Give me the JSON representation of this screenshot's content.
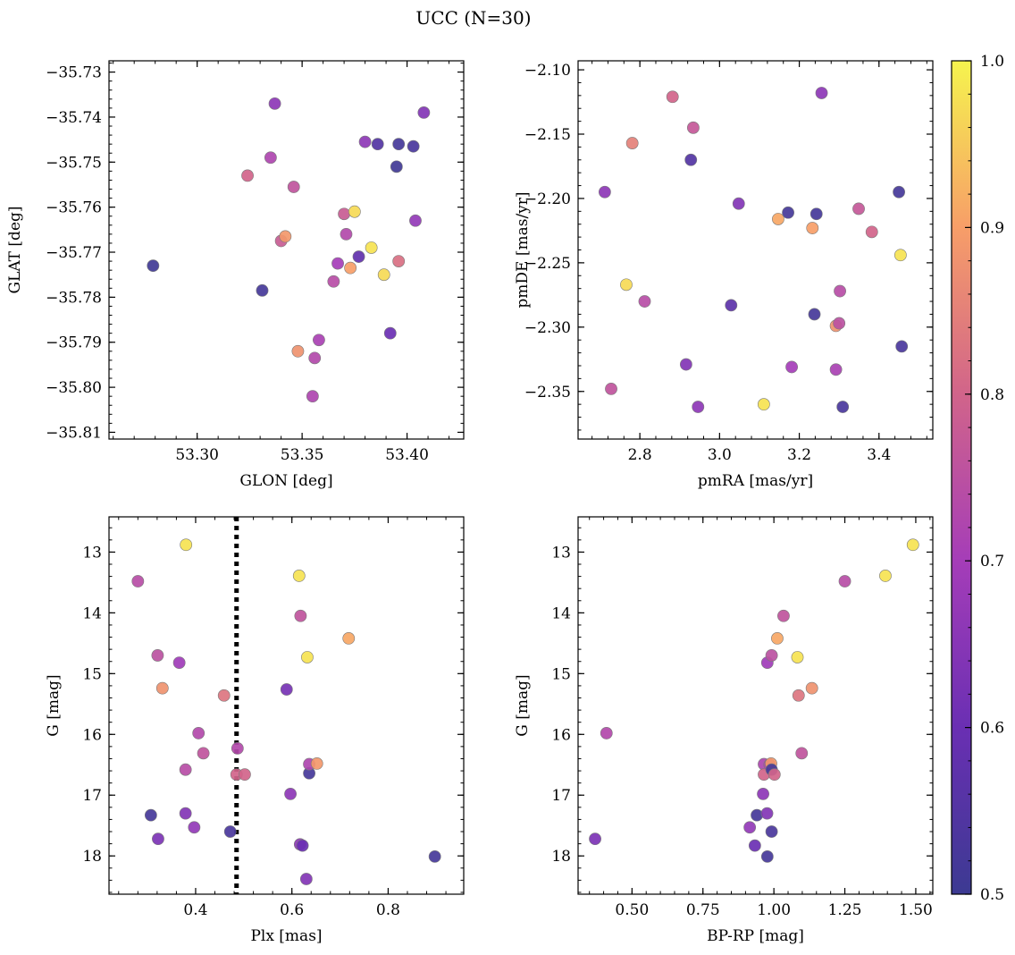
{
  "figure": {
    "title": "UCC (N=30)"
  },
  "colorbar": {
    "colormap": "plasma",
    "range": [
      0.5,
      1.0
    ],
    "ticks": [
      "0.5",
      "0.6",
      "0.7",
      "0.8",
      "0.9",
      "1.0"
    ],
    "tick_values": [
      0.5,
      0.6,
      0.7,
      0.8,
      0.9,
      1.0
    ]
  },
  "chart_data": [
    {
      "id": "glon-glat",
      "type": "scatter",
      "title": "",
      "xlabel": "GLON [deg]",
      "ylabel": "GLAT [deg]",
      "xlim": [
        53.258,
        53.427
      ],
      "ylim": [
        -35.8115,
        -35.7275
      ],
      "y_inverted": false,
      "xticks": [
        53.3,
        53.35,
        53.4
      ],
      "xtick_labels": [
        "53.30",
        "53.35",
        "53.40"
      ],
      "yticks": [
        -35.73,
        -35.74,
        -35.75,
        -35.76,
        -35.77,
        -35.78,
        -35.79,
        -35.8,
        -35.81
      ],
      "ytick_labels": [
        "−35.73",
        "−35.74",
        "−35.75",
        "−35.76",
        "−35.77",
        "−35.78",
        "−35.79",
        "−35.80",
        "−35.81"
      ],
      "points": [
        {
          "x": 53.279,
          "y": -35.773,
          "c": 0.51
        },
        {
          "x": 53.331,
          "y": -35.7785,
          "c": 0.52
        },
        {
          "x": 53.337,
          "y": -35.737,
          "c": 0.66
        },
        {
          "x": 53.335,
          "y": -35.749,
          "c": 0.72
        },
        {
          "x": 53.324,
          "y": -35.753,
          "c": 0.8
        },
        {
          "x": 53.34,
          "y": -35.7675,
          "c": 0.78
        },
        {
          "x": 53.342,
          "y": -35.7665,
          "c": 0.89
        },
        {
          "x": 53.346,
          "y": -35.7555,
          "c": 0.76
        },
        {
          "x": 53.348,
          "y": -35.792,
          "c": 0.88
        },
        {
          "x": 53.358,
          "y": -35.7895,
          "c": 0.71
        },
        {
          "x": 53.356,
          "y": -35.7935,
          "c": 0.73
        },
        {
          "x": 53.355,
          "y": -35.802,
          "c": 0.72
        },
        {
          "x": 53.365,
          "y": -35.7765,
          "c": 0.74
        },
        {
          "x": 53.367,
          "y": -35.7725,
          "c": 0.7
        },
        {
          "x": 53.37,
          "y": -35.7615,
          "c": 0.78
        },
        {
          "x": 53.371,
          "y": -35.766,
          "c": 0.73
        },
        {
          "x": 53.373,
          "y": -35.7735,
          "c": 0.9
        },
        {
          "x": 53.375,
          "y": -35.761,
          "c": 0.97
        },
        {
          "x": 53.377,
          "y": -35.771,
          "c": 0.58
        },
        {
          "x": 53.38,
          "y": -35.7455,
          "c": 0.66
        },
        {
          "x": 53.383,
          "y": -35.769,
          "c": 0.98
        },
        {
          "x": 53.386,
          "y": -35.746,
          "c": 0.55
        },
        {
          "x": 53.389,
          "y": -35.775,
          "c": 0.97
        },
        {
          "x": 53.392,
          "y": -35.788,
          "c": 0.6
        },
        {
          "x": 53.395,
          "y": -35.751,
          "c": 0.51
        },
        {
          "x": 53.396,
          "y": -35.746,
          "c": 0.52
        },
        {
          "x": 53.396,
          "y": -35.772,
          "c": 0.82
        },
        {
          "x": 53.403,
          "y": -35.7465,
          "c": 0.53
        },
        {
          "x": 53.404,
          "y": -35.763,
          "c": 0.67
        },
        {
          "x": 53.408,
          "y": -35.739,
          "c": 0.64
        }
      ]
    },
    {
      "id": "pmra-pmde",
      "type": "scatter",
      "title": "",
      "xlabel": "pmRA [mas/yr]",
      "ylabel": "pmDE [mas/yr]",
      "xlim": [
        2.645,
        3.535
      ],
      "ylim": [
        -2.387,
        -2.093
      ],
      "y_inverted": false,
      "xticks": [
        2.8,
        3.0,
        3.2,
        3.4
      ],
      "xtick_labels": [
        "2.8",
        "3.0",
        "3.2",
        "3.4"
      ],
      "yticks": [
        -2.1,
        -2.15,
        -2.2,
        -2.25,
        -2.3,
        -2.35
      ],
      "ytick_labels": [
        "−2.10",
        "−2.15",
        "−2.20",
        "−2.25",
        "−2.30",
        "−2.35"
      ],
      "points": [
        {
          "x": 2.712,
          "y": -2.195,
          "c": 0.66
        },
        {
          "x": 2.728,
          "y": -2.348,
          "c": 0.76
        },
        {
          "x": 2.766,
          "y": -2.267,
          "c": 0.97
        },
        {
          "x": 2.781,
          "y": -2.157,
          "c": 0.85
        },
        {
          "x": 2.812,
          "y": -2.28,
          "c": 0.74
        },
        {
          "x": 2.882,
          "y": -2.121,
          "c": 0.8
        },
        {
          "x": 2.916,
          "y": -2.329,
          "c": 0.64
        },
        {
          "x": 2.928,
          "y": -2.17,
          "c": 0.55
        },
        {
          "x": 2.934,
          "y": -2.145,
          "c": 0.77
        },
        {
          "x": 2.946,
          "y": -2.362,
          "c": 0.66
        },
        {
          "x": 3.029,
          "y": -2.283,
          "c": 0.57
        },
        {
          "x": 3.048,
          "y": -2.204,
          "c": 0.64
        },
        {
          "x": 3.111,
          "y": -2.36,
          "c": 0.98
        },
        {
          "x": 3.147,
          "y": -2.216,
          "c": 0.91
        },
        {
          "x": 3.172,
          "y": -2.211,
          "c": 0.52
        },
        {
          "x": 3.181,
          "y": -2.331,
          "c": 0.7
        },
        {
          "x": 3.233,
          "y": -2.223,
          "c": 0.9
        },
        {
          "x": 3.238,
          "y": -2.29,
          "c": 0.52
        },
        {
          "x": 3.243,
          "y": -2.212,
          "c": 0.52
        },
        {
          "x": 3.256,
          "y": -2.118,
          "c": 0.66
        },
        {
          "x": 3.292,
          "y": -2.333,
          "c": 0.71
        },
        {
          "x": 3.292,
          "y": -2.299,
          "c": 0.88
        },
        {
          "x": 3.3,
          "y": -2.297,
          "c": 0.75
        },
        {
          "x": 3.302,
          "y": -2.272,
          "c": 0.74
        },
        {
          "x": 3.309,
          "y": -2.362,
          "c": 0.53
        },
        {
          "x": 3.349,
          "y": -2.208,
          "c": 0.77
        },
        {
          "x": 3.382,
          "y": -2.226,
          "c": 0.8
        },
        {
          "x": 3.45,
          "y": -2.195,
          "c": 0.52
        },
        {
          "x": 3.454,
          "y": -2.244,
          "c": 0.98
        },
        {
          "x": 3.457,
          "y": -2.315,
          "c": 0.53
        }
      ]
    },
    {
      "id": "plx-g",
      "type": "scatter",
      "title": "",
      "xlabel": "Plx [mas]",
      "ylabel": "G [mag]",
      "xlim": [
        0.22,
        0.957
      ],
      "ylim": [
        12.42,
        18.63
      ],
      "y_inverted": true,
      "xticks": [
        0.4,
        0.6,
        0.8
      ],
      "xtick_labels": [
        "0.4",
        "0.6",
        "0.8"
      ],
      "yticks": [
        13,
        14,
        15,
        16,
        17,
        18
      ],
      "ytick_labels": [
        "13",
        "14",
        "15",
        "16",
        "17",
        "18"
      ],
      "vline": {
        "x": 0.485,
        "style": "dotted"
      },
      "points": [
        {
          "x": 0.28,
          "y": 13.48,
          "c": 0.74
        },
        {
          "x": 0.307,
          "y": 17.33,
          "c": 0.52
        },
        {
          "x": 0.321,
          "y": 14.7,
          "c": 0.75
        },
        {
          "x": 0.322,
          "y": 17.72,
          "c": 0.63
        },
        {
          "x": 0.331,
          "y": 15.24,
          "c": 0.88
        },
        {
          "x": 0.366,
          "y": 14.82,
          "c": 0.69
        },
        {
          "x": 0.379,
          "y": 17.3,
          "c": 0.64
        },
        {
          "x": 0.38,
          "y": 12.88,
          "c": 0.98
        },
        {
          "x": 0.379,
          "y": 16.58,
          "c": 0.74
        },
        {
          "x": 0.397,
          "y": 17.53,
          "c": 0.67
        },
        {
          "x": 0.406,
          "y": 15.98,
          "c": 0.73
        },
        {
          "x": 0.416,
          "y": 16.31,
          "c": 0.76
        },
        {
          "x": 0.459,
          "y": 15.36,
          "c": 0.83
        },
        {
          "x": 0.472,
          "y": 17.6,
          "c": 0.53
        },
        {
          "x": 0.487,
          "y": 16.23,
          "c": 0.73
        },
        {
          "x": 0.485,
          "y": 16.66,
          "c": 0.8
        },
        {
          "x": 0.502,
          "y": 16.66,
          "c": 0.8
        },
        {
          "x": 0.589,
          "y": 15.26,
          "c": 0.62
        },
        {
          "x": 0.597,
          "y": 16.98,
          "c": 0.66
        },
        {
          "x": 0.615,
          "y": 13.39,
          "c": 0.98
        },
        {
          "x": 0.617,
          "y": 17.81,
          "c": 0.66
        },
        {
          "x": 0.618,
          "y": 14.05,
          "c": 0.76
        },
        {
          "x": 0.622,
          "y": 17.83,
          "c": 0.6
        },
        {
          "x": 0.63,
          "y": 18.38,
          "c": 0.64
        },
        {
          "x": 0.632,
          "y": 14.73,
          "c": 0.98
        },
        {
          "x": 0.636,
          "y": 16.64,
          "c": 0.52
        },
        {
          "x": 0.636,
          "y": 16.49,
          "c": 0.72
        },
        {
          "x": 0.652,
          "y": 16.48,
          "c": 0.89
        },
        {
          "x": 0.718,
          "y": 14.42,
          "c": 0.91
        },
        {
          "x": 0.897,
          "y": 18.01,
          "c": 0.52
        }
      ]
    },
    {
      "id": "bprp-g",
      "type": "scatter",
      "title": "",
      "xlabel": "BP-RP [mag]",
      "ylabel": "G [mag]",
      "xlim": [
        0.31,
        1.56
      ],
      "ylim": [
        12.42,
        18.63
      ],
      "y_inverted": true,
      "xticks": [
        0.5,
        0.75,
        1.0,
        1.25,
        1.5
      ],
      "xtick_labels": [
        "0.50",
        "0.75",
        "1.00",
        "1.25",
        "1.50"
      ],
      "yticks": [
        13,
        14,
        15,
        16,
        17,
        18
      ],
      "ytick_labels": [
        "13",
        "14",
        "15",
        "16",
        "17",
        "18"
      ],
      "points": [
        {
          "x": 0.37,
          "y": 17.72,
          "c": 0.63
        },
        {
          "x": 0.41,
          "y": 15.98,
          "c": 0.73
        },
        {
          "x": 0.915,
          "y": 17.53,
          "c": 0.67
        },
        {
          "x": 0.933,
          "y": 17.83,
          "c": 0.6
        },
        {
          "x": 0.94,
          "y": 17.33,
          "c": 0.52
        },
        {
          "x": 0.962,
          "y": 16.98,
          "c": 0.66
        },
        {
          "x": 0.965,
          "y": 16.49,
          "c": 0.72
        },
        {
          "x": 0.965,
          "y": 16.66,
          "c": 0.8
        },
        {
          "x": 0.976,
          "y": 17.3,
          "c": 0.64
        },
        {
          "x": 0.977,
          "y": 18.01,
          "c": 0.52
        },
        {
          "x": 0.977,
          "y": 14.82,
          "c": 0.69
        },
        {
          "x": 0.985,
          "y": 16.5,
          "c": 0.73
        },
        {
          "x": 0.99,
          "y": 16.48,
          "c": 0.89
        },
        {
          "x": 0.992,
          "y": 16.58,
          "c": 0.52
        },
        {
          "x": 0.992,
          "y": 17.6,
          "c": 0.53
        },
        {
          "x": 0.992,
          "y": 14.7,
          "c": 0.75
        },
        {
          "x": 1.002,
          "y": 16.66,
          "c": 0.8
        },
        {
          "x": 1.012,
          "y": 14.42,
          "c": 0.91
        },
        {
          "x": 1.034,
          "y": 14.05,
          "c": 0.76
        },
        {
          "x": 1.083,
          "y": 14.73,
          "c": 0.98
        },
        {
          "x": 1.087,
          "y": 15.36,
          "c": 0.83
        },
        {
          "x": 1.098,
          "y": 16.31,
          "c": 0.76
        },
        {
          "x": 1.134,
          "y": 15.24,
          "c": 0.88
        },
        {
          "x": 1.25,
          "y": 13.48,
          "c": 0.74
        },
        {
          "x": 1.393,
          "y": 13.39,
          "c": 0.98
        },
        {
          "x": 1.49,
          "y": 12.88,
          "c": 0.98
        }
      ]
    }
  ]
}
